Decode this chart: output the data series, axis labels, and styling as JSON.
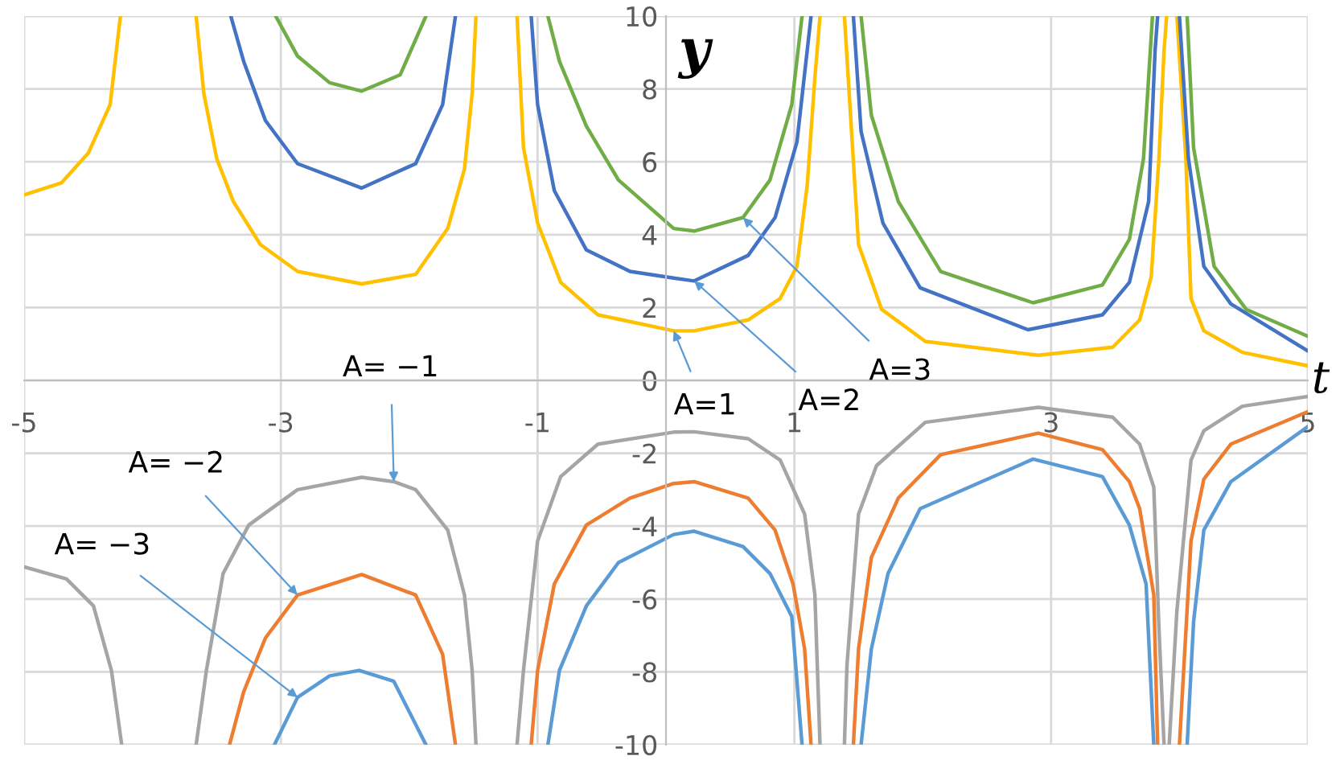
{
  "chart_data": {
    "type": "line",
    "xlabel": "t",
    "ylabel": "y",
    "xlim": [
      -5,
      5
    ],
    "ylim": [
      -10,
      10
    ],
    "xticks": [
      -5,
      -3,
      -1,
      1,
      3,
      5
    ],
    "yticks": [
      -10,
      -8,
      -6,
      -4,
      -2,
      0,
      2,
      4,
      6,
      8,
      10
    ],
    "grid": true,
    "legend": false,
    "marker": "none",
    "line_style": "solid",
    "series": [
      {
        "color": "#ffc000",
        "x": [
          -5,
          -4.71,
          -4.5,
          -4.33,
          -4.25,
          -3.95,
          -3.66,
          -3.6,
          -3.5,
          -3.37,
          -3.16,
          -2.87,
          -2.37,
          -1.95,
          -1.7,
          -1.57,
          -1.51,
          -1.48,
          -1.3,
          -1.16,
          -1.11,
          -1.0,
          -0.82,
          -0.53,
          0.06,
          0.22,
          0.64,
          0.89,
          1.02,
          1.1,
          1.16,
          1.2,
          1.3,
          1.39,
          1.5,
          1.68,
          2.02,
          2.9,
          3.48,
          3.69,
          3.78,
          3.84,
          3.88,
          3.9,
          3.94,
          3.98,
          4.05,
          4.09,
          4.19,
          4.49,
          5.0
        ],
        "values": [
          5.09,
          5.42,
          6.24,
          7.57,
          10,
          null,
          10,
          7.87,
          6.09,
          4.91,
          3.73,
          2.99,
          2.65,
          2.91,
          4.17,
          5.8,
          7.87,
          10,
          null,
          10,
          6.39,
          4.32,
          2.69,
          1.8,
          1.36,
          1.36,
          1.66,
          2.25,
          3.13,
          5.35,
          8.31,
          10,
          null,
          10,
          3.73,
          1.95,
          1.07,
          0.69,
          0.91,
          1.66,
          2.84,
          6.09,
          9.05,
          10,
          null,
          10,
          6.09,
          2.25,
          1.36,
          0.77,
          0.4
        ]
      },
      {
        "color": "#4472c4",
        "x": [
          -3.39,
          -3.29,
          -3.12,
          -2.87,
          -2.37,
          -1.95,
          -1.74,
          -1.64,
          -1.3,
          -1.05,
          -1.0,
          -0.87,
          -0.62,
          -0.28,
          0.06,
          0.22,
          0.64,
          0.85,
          1.02,
          1.1,
          1.13,
          1.3,
          1.46,
          1.52,
          1.69,
          1.98,
          2.82,
          3.4,
          3.61,
          3.76,
          3.81,
          3.83,
          3.9,
          4.0,
          4.07,
          4.19,
          4.4,
          5.0
        ],
        "values": [
          10,
          8.76,
          7.13,
          5.95,
          5.28,
          5.95,
          7.57,
          10,
          null,
          10,
          7.57,
          5.21,
          3.58,
          2.99,
          2.81,
          2.73,
          3.43,
          4.47,
          6.54,
          9.05,
          10,
          null,
          10,
          6.83,
          4.32,
          2.54,
          1.39,
          1.8,
          2.69,
          4.91,
          9.05,
          10,
          null,
          10,
          6.09,
          3.13,
          2.1,
          0.81
        ]
      },
      {
        "color": "#70ad47",
        "x": [
          -3.04,
          -2.87,
          -2.62,
          -2.37,
          -2.07,
          -1.87,
          -1.4,
          -0.92,
          -0.83,
          -0.62,
          -0.37,
          0.06,
          0.22,
          0.6,
          0.81,
          0.98,
          1.06,
          1.3,
          1.52,
          1.6,
          1.81,
          2.14,
          2.86,
          3.4,
          3.61,
          3.72,
          3.79,
          3.9,
          4.06,
          4.11,
          4.27,
          4.52,
          5.0
        ],
        "values": [
          10,
          8.9,
          8.17,
          7.94,
          8.39,
          10,
          null,
          10,
          8.76,
          6.98,
          5.5,
          4.17,
          4.1,
          4.47,
          5.5,
          7.57,
          10,
          null,
          10,
          7.28,
          4.91,
          2.99,
          2.13,
          2.62,
          3.87,
          6.09,
          10,
          null,
          10,
          6.39,
          3.13,
          1.95,
          1.21
        ]
      },
      {
        "color": "#a5a5a5",
        "x": [
          -5,
          -4.67,
          -4.46,
          -4.32,
          -4.24,
          -3.95,
          -3.66,
          -3.58,
          -3.45,
          -3.25,
          -2.87,
          -2.37,
          -2.12,
          -1.95,
          -1.7,
          -1.57,
          -1.51,
          -1.48,
          -1.3,
          -1.16,
          -1.11,
          -1.0,
          -0.82,
          -0.53,
          0.06,
          0.22,
          0.64,
          0.89,
          1.08,
          1.16,
          1.2,
          1.3,
          1.39,
          1.41,
          1.5,
          1.64,
          2.02,
          2.9,
          3.48,
          3.69,
          3.8,
          3.84,
          3.88,
          3.9,
          3.92,
          3.98,
          4.09,
          4.19,
          4.49,
          5.0
        ],
        "values": [
          -5.12,
          -5.45,
          -6.19,
          -7.96,
          -10,
          null,
          -10,
          -7.96,
          -5.3,
          -3.97,
          -3.0,
          -2.66,
          -2.78,
          -3.0,
          -4.11,
          -5.89,
          -7.96,
          -10,
          null,
          -10,
          -7.96,
          -4.41,
          -2.64,
          -1.75,
          -1.42,
          -1.41,
          -1.6,
          -2.19,
          -3.67,
          -5.89,
          -10,
          null,
          -10,
          -7.81,
          -3.67,
          -2.34,
          -1.15,
          -0.74,
          -1.01,
          -1.75,
          -2.93,
          -6.78,
          -10,
          null,
          -10,
          -6.33,
          -2.19,
          -1.38,
          -0.71,
          -0.44
        ]
      },
      {
        "color": "#ed7d31",
        "x": [
          -3.4,
          -3.29,
          -3.12,
          -2.87,
          -2.37,
          -1.95,
          -1.74,
          -1.64,
          -1.3,
          -1.05,
          -1.0,
          -0.87,
          -0.62,
          -0.28,
          0.06,
          0.22,
          0.64,
          0.85,
          0.99,
          1.08,
          1.13,
          1.3,
          1.46,
          1.5,
          1.6,
          1.81,
          2.14,
          2.9,
          3.4,
          3.61,
          3.69,
          3.8,
          3.83,
          3.9,
          4.0,
          4.09,
          4.19,
          4.4,
          5.0
        ],
        "values": [
          -10,
          -8.55,
          -7.07,
          -5.89,
          -5.33,
          -5.89,
          -7.52,
          -10,
          null,
          -10,
          -7.96,
          -5.59,
          -3.97,
          -3.23,
          -2.83,
          -2.78,
          -3.23,
          -4.11,
          -5.59,
          -7.37,
          -10,
          null,
          -10,
          -7.37,
          -4.86,
          -3.23,
          -2.04,
          -1.45,
          -1.9,
          -2.78,
          -3.52,
          -5.89,
          -10,
          null,
          -10,
          -4.41,
          -2.71,
          -1.75,
          -0.86
        ]
      },
      {
        "color": "#5b9bd5",
        "x": [
          -3.05,
          -2.87,
          -2.62,
          -2.39,
          -2.12,
          -1.87,
          -1.4,
          -0.92,
          -0.83,
          -0.62,
          -0.37,
          0.06,
          0.22,
          0.6,
          0.81,
          0.98,
          1.06,
          1.3,
          1.52,
          1.6,
          1.73,
          1.98,
          2.86,
          3.4,
          3.61,
          3.74,
          3.8,
          3.9,
          4.06,
          4.11,
          4.19,
          4.4,
          5.0
        ],
        "values": [
          -10,
          -8.7,
          -8.11,
          -7.96,
          -8.26,
          -10,
          null,
          -10,
          -7.96,
          -6.19,
          -5.0,
          -4.23,
          -4.14,
          -4.56,
          -5.3,
          -6.48,
          -10,
          null,
          -10,
          -7.37,
          -5.3,
          -3.52,
          -2.16,
          -2.64,
          -3.97,
          -5.59,
          -10,
          null,
          -10,
          -6.63,
          -4.11,
          -2.78,
          -1.27
        ]
      }
    ],
    "annotations": [
      {
        "text": "A= −1",
        "x": -2.12,
        "y": -2.78
      },
      {
        "text": "A= −2",
        "x": -2.87,
        "y": -5.89
      },
      {
        "text": "A= −3",
        "x": -2.87,
        "y": -8.7
      },
      {
        "text": "A=1",
        "x": 0.06,
        "y": 1.36
      },
      {
        "text": "A=2",
        "x": 0.22,
        "y": 2.73
      },
      {
        "text": "A=3",
        "x": 0.6,
        "y": 4.47
      }
    ]
  }
}
